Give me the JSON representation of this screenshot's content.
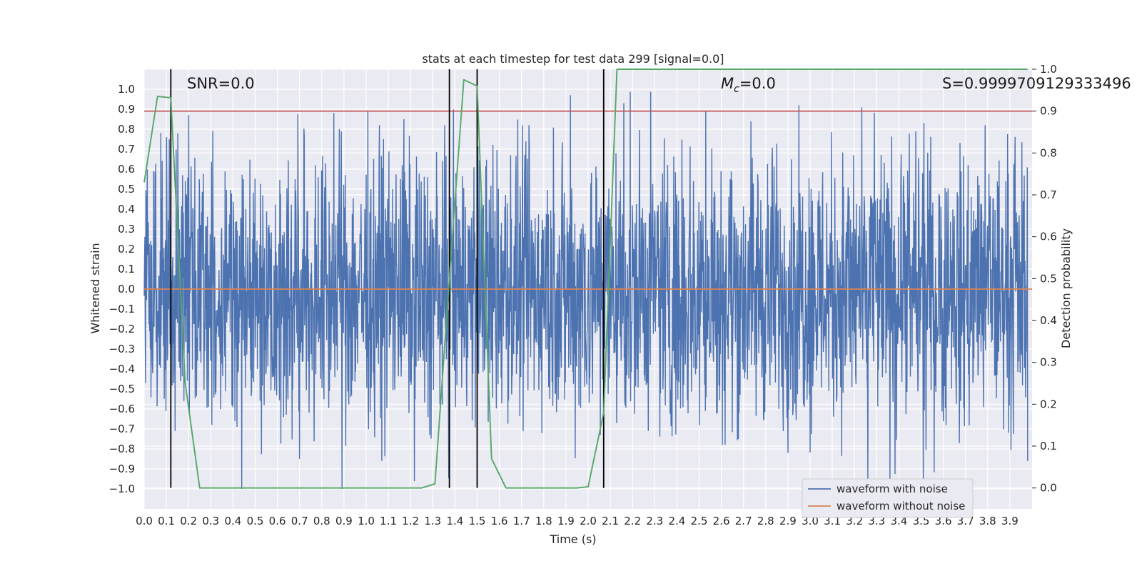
{
  "chart_data": {
    "type": "line",
    "title": "stats at each timestep for test data 299 [signal=0.0]",
    "xlabel": "Time (s)",
    "ylabel": "Whitened strain",
    "y2label": "Detection probability",
    "xlim": [
      0.0,
      4.0
    ],
    "ylim": [
      -1.1,
      1.1
    ],
    "y2lim": [
      -0.05,
      1.0
    ],
    "grid": true,
    "x_ticks": [
      "0.0",
      "0.1",
      "0.2",
      "0.3",
      "0.4",
      "0.5",
      "0.6",
      "0.7",
      "0.8",
      "0.9",
      "1.0",
      "1.1",
      "1.2",
      "1.3",
      "1.4",
      "1.5",
      "1.6",
      "1.7",
      "1.8",
      "1.9",
      "2.0",
      "2.1",
      "2.2",
      "2.3",
      "2.4",
      "2.5",
      "2.6",
      "2.7",
      "2.8",
      "2.9",
      "3.0",
      "3.1",
      "3.2",
      "3.3",
      "3.4",
      "3.5",
      "3.6",
      "3.7",
      "3.8",
      "3.9"
    ],
    "y_ticks": [
      "1.0",
      "0.9",
      "0.8",
      "0.7",
      "0.6",
      "0.5",
      "0.4",
      "0.3",
      "0.2",
      "0.1",
      "0.0",
      "-0.1",
      "-0.2",
      "-0.3",
      "-0.4",
      "-0.5",
      "-0.6",
      "-0.7",
      "-0.8",
      "-0.9",
      "-1.0"
    ],
    "y2_ticks": [
      "1.0",
      "0.9",
      "0.8",
      "0.7",
      "0.6",
      "0.5",
      "0.4",
      "0.3",
      "0.2",
      "0.1",
      "0.0"
    ],
    "annotations": {
      "snr": "SNR=0.0",
      "mc_symbol": "M",
      "mc_sub": "c",
      "mc_value": "=0.0",
      "s": "S=0.9999709129333496"
    },
    "series": [
      {
        "name": "waveform with noise",
        "color": "#4c72b0",
        "kind": "noise",
        "typical_range": [
          -0.55,
          0.55
        ],
        "peaks": [
          {
            "x": 0.2,
            "y": 0.87
          },
          {
            "x": 1.17,
            "y": 0.85
          },
          {
            "x": 1.92,
            "y": 0.97
          },
          {
            "x": 2.16,
            "y": 0.93
          },
          {
            "x": 2.53,
            "y": 0.89
          },
          {
            "x": 0.14,
            "y": -0.71
          },
          {
            "x": 0.7,
            "y": -0.85
          },
          {
            "x": 3.26,
            "y": -0.97
          },
          {
            "x": 3.51,
            "y": -0.99
          },
          {
            "x": 3.98,
            "y": -0.86
          }
        ]
      },
      {
        "name": "waveform without noise",
        "color": "#dd8452",
        "x": [
          0.0,
          4.0
        ],
        "y": [
          0.0,
          0.0
        ]
      },
      {
        "name": "detection probability",
        "color": "#55a868",
        "axis": "y2",
        "x": [
          0.0,
          0.06,
          0.12,
          0.185,
          0.25,
          0.31,
          1.25,
          1.31,
          1.375,
          1.44,
          1.5,
          1.565,
          1.63,
          1.95,
          2.0,
          2.07,
          2.13,
          3.98
        ],
        "y": [
          0.73,
          0.935,
          0.932,
          0.25,
          0.0,
          0.0,
          0.0,
          0.01,
          0.5,
          0.975,
          0.96,
          0.07,
          0.0,
          0.0,
          0.003,
          0.18,
          1.0,
          1.0
        ]
      }
    ],
    "threshold": {
      "value": 0.9,
      "axis": "y2",
      "color": "#c44e52"
    },
    "vlines": [
      0.12,
      1.375,
      1.5,
      2.07
    ],
    "vline_color": "#000000",
    "legend": {
      "position": "lower-right",
      "entries": [
        "waveform with noise",
        "waveform without noise"
      ]
    },
    "colors": {
      "background": "#eaeaf2",
      "grid": "#ffffff",
      "text": "#262626"
    }
  }
}
